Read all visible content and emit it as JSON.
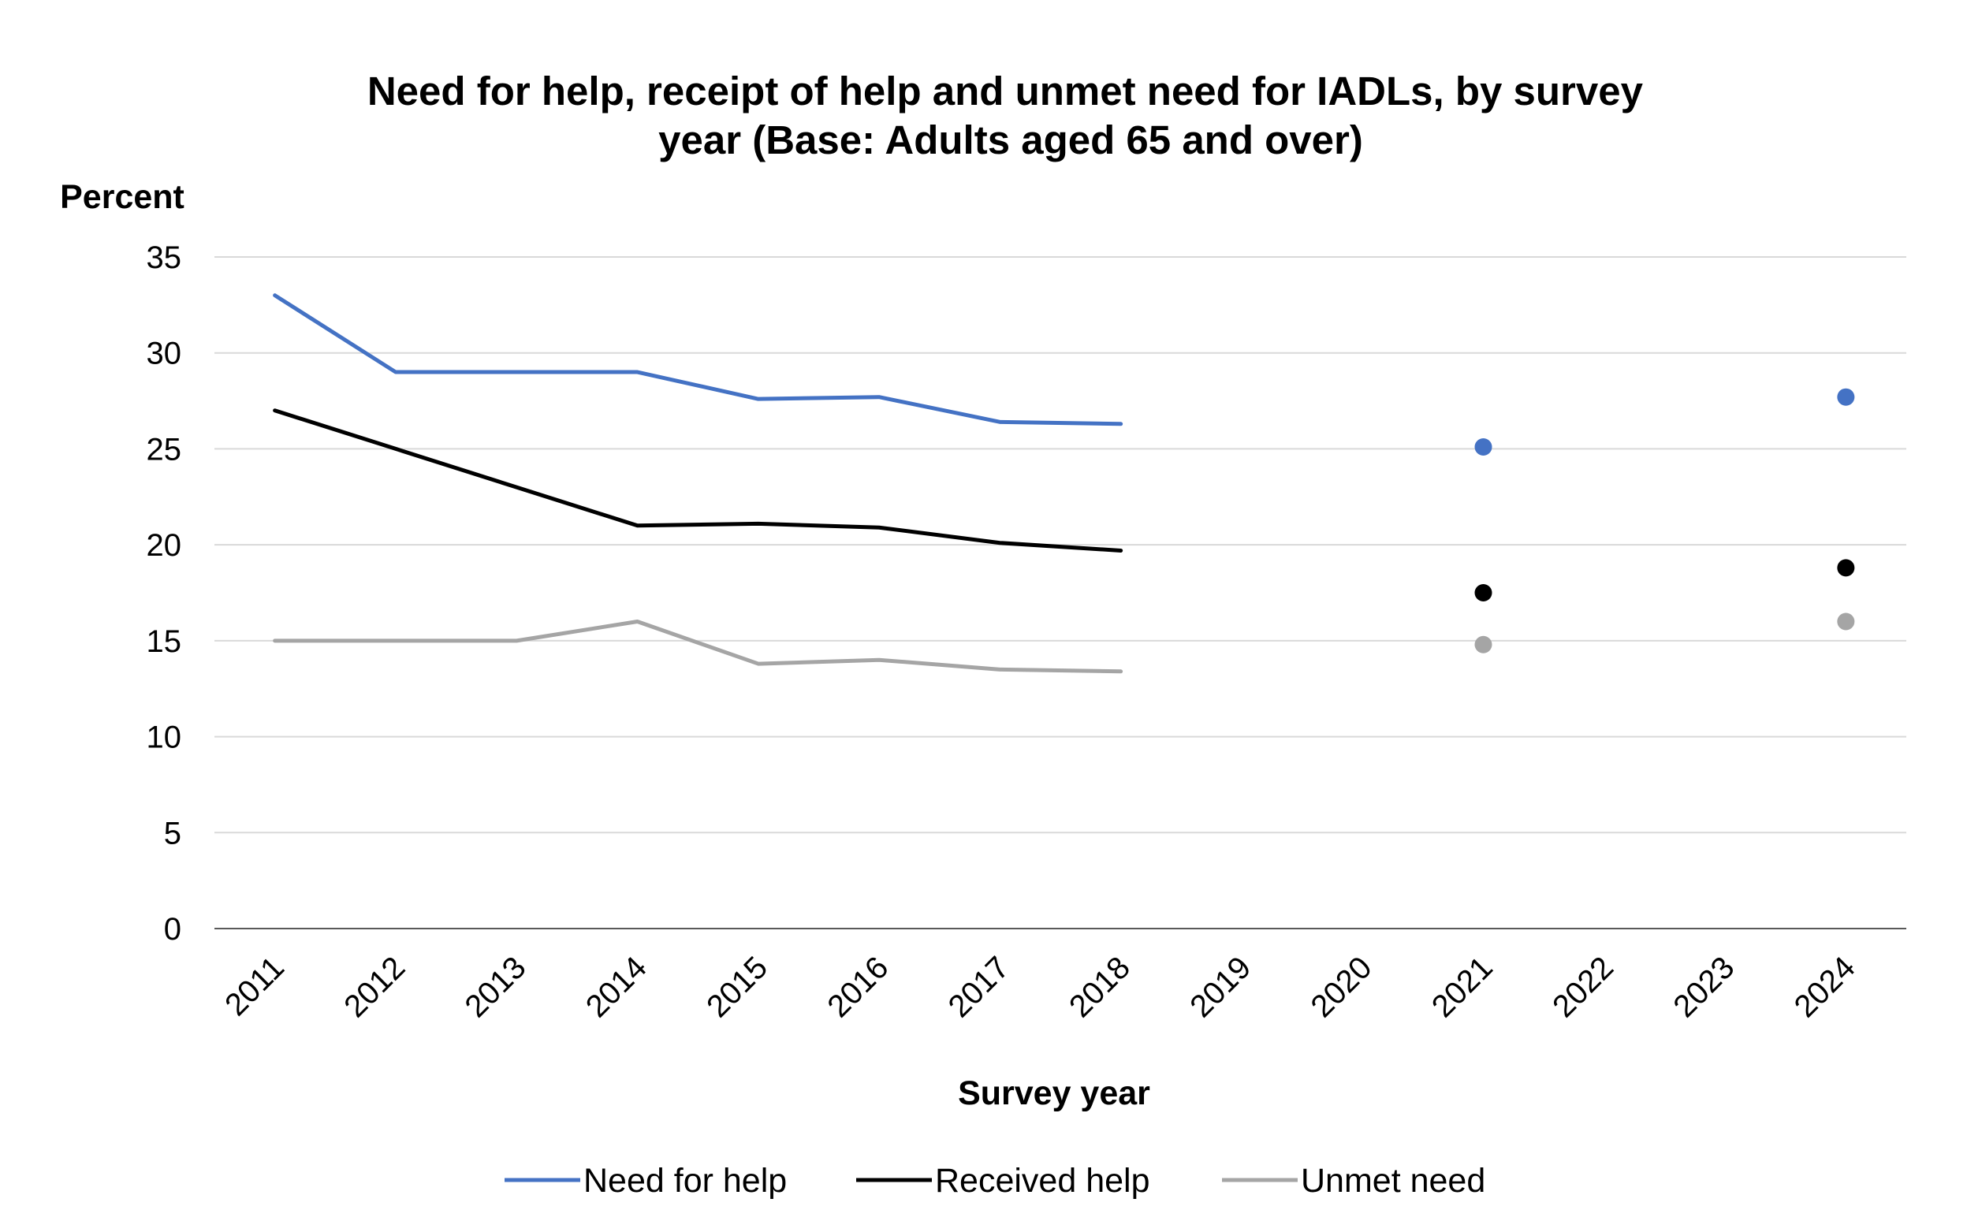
{
  "chart_data": {
    "type": "line",
    "title": "Need for help, receipt of help and unmet need for IADLs, by survey year (Base: Adults aged 65 and over)",
    "title_lines": [
      "Need for help, receipt of help and unmet need for IADLs, by survey",
      "year (Base: Adults aged 65 and over)"
    ],
    "xlabel": "Survey year",
    "ylabel": "Percent",
    "categories": [
      "2011",
      "2012",
      "2013",
      "2014",
      "2015",
      "2016",
      "2017",
      "2018",
      "2019",
      "2020",
      "2021",
      "2022",
      "2023",
      "2024"
    ],
    "ylim": [
      0,
      35
    ],
    "yticks": [
      "0",
      "5",
      "10",
      "15",
      "20",
      "25",
      "30",
      "35"
    ],
    "grid": true,
    "legend_position": "bottom",
    "series": [
      {
        "name": "Need for help",
        "color": "#4472c4",
        "values": [
          33,
          29,
          29,
          29,
          27.6,
          27.7,
          26.4,
          26.3,
          null,
          null,
          25.1,
          null,
          null,
          27.7
        ]
      },
      {
        "name": "Received help",
        "color": "#000000",
        "values": [
          27,
          25,
          23,
          21,
          21.1,
          20.9,
          20.1,
          19.7,
          null,
          null,
          17.5,
          null,
          null,
          18.8
        ]
      },
      {
        "name": "Unmet need",
        "color": "#a5a5a5",
        "values": [
          15,
          15,
          15,
          16,
          13.8,
          14,
          13.5,
          13.4,
          null,
          null,
          14.8,
          null,
          null,
          16
        ]
      }
    ]
  }
}
